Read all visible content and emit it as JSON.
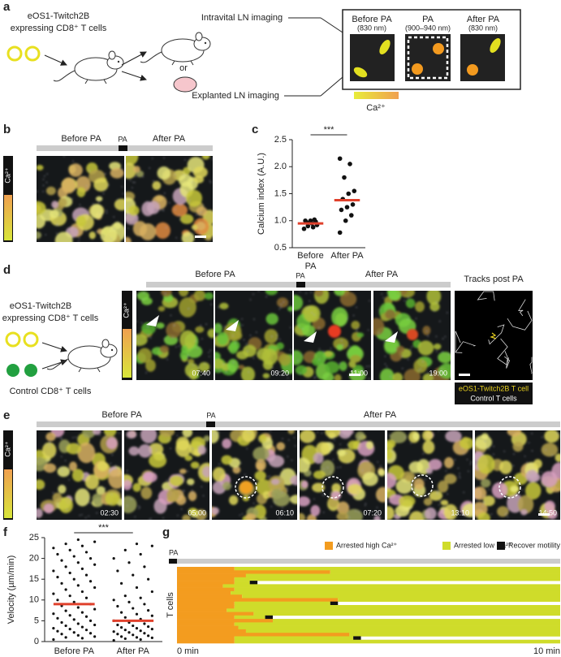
{
  "panel_letters": [
    "a",
    "b",
    "c",
    "d",
    "e",
    "f",
    "g"
  ],
  "panel_a": {
    "cells_line1": "eOS1-Twitch2B",
    "cells_line2": "expressing CD8⁺ T cells",
    "intravital": "Intravital LN imaging",
    "or": "or",
    "explanted": "Explanted LN imaging",
    "steps": [
      {
        "title": "Before PA",
        "sub": "(830 nm)"
      },
      {
        "title": "PA",
        "sub": "(900–940 nm)"
      },
      {
        "title": "After PA",
        "sub": "(830 nm)"
      }
    ],
    "colorbar": "Ca²⁺"
  },
  "panel_b": {
    "before": "Before PA",
    "pa": "PA",
    "after": "After PA",
    "colorbar": "Ca²⁺"
  },
  "panel_d": {
    "cells_line1": "eOS1-Twitch2B",
    "cells_line2": "expressing CD8⁺ T cells",
    "control": "Control CD8⁺ T cells",
    "before": "Before PA",
    "pa": "PA",
    "after": "After PA",
    "tracks": "Tracks post PA",
    "legend": [
      "eOS1-Twitch2B T cell",
      "Control T cells"
    ],
    "times": [
      "07:40",
      "09:20",
      "11:00",
      "19:00"
    ],
    "colorbar": "Ca²⁺"
  },
  "panel_e": {
    "before": "Before PA",
    "pa": "PA",
    "after": "After PA",
    "times": [
      "02:30",
      "05:00",
      "06:10",
      "07:20",
      "13:10",
      "14:50"
    ],
    "colorbar": "Ca²⁺"
  },
  "chart_data": [
    {
      "type": "strip",
      "ylabel": "Calcium index (A.U.)",
      "categories": [
        "Before PA",
        "After PA"
      ],
      "values": [
        [
          0.85,
          0.88,
          0.9,
          0.92,
          0.95,
          0.97,
          0.98,
          1.0,
          1.0,
          1.02
        ],
        [
          2.15,
          2.05,
          1.8,
          1.55,
          1.5,
          1.4,
          1.3,
          1.25,
          1.2,
          1.1,
          1.0,
          0.78
        ]
      ],
      "means": [
        0.95,
        1.38
      ],
      "color": "#111111",
      "mean_color": "#e0412c",
      "annotation": "***",
      "ylim": [
        0.5,
        2.5
      ],
      "yticks": [
        0.5,
        {
          "value": 1.0,
          "label": "1.0"
        },
        1.5,
        {
          "value": 2.0,
          "label": "2.0"
        },
        2.5
      ]
    },
    {
      "type": "strip",
      "ylabel": "Velocity (µm/min)",
      "categories": [
        "Before PA",
        "After PA"
      ],
      "values": [
        [
          0.5,
          0.8,
          1,
          1.2,
          1.5,
          1.8,
          2,
          2.2,
          2.5,
          2.8,
          3,
          3.2,
          3.5,
          3.8,
          4,
          4.3,
          4.6,
          5,
          5.3,
          5.6,
          6,
          6.3,
          6.7,
          7,
          7.4,
          7.8,
          8.2,
          8.6,
          9,
          9.5,
          10,
          10.5,
          11,
          11.5,
          12,
          12.5,
          13,
          13.5,
          14,
          14.5,
          15,
          15.5,
          16,
          16.5,
          17,
          17.5,
          18,
          18.5,
          19,
          19.5,
          20,
          20.5,
          21,
          21.5,
          22,
          22.5,
          23,
          23.5,
          24,
          24.5
        ],
        [
          0.3,
          0.5,
          0.7,
          0.9,
          1,
          1.2,
          1.4,
          1.6,
          1.8,
          2,
          2.2,
          2.4,
          2.6,
          2.8,
          3,
          3.2,
          3.4,
          3.6,
          3.8,
          4,
          4.3,
          4.6,
          5,
          5.4,
          5.8,
          6.2,
          6.6,
          7,
          7.5,
          8,
          8.5,
          9,
          9.5,
          10,
          10.5,
          11,
          12,
          13,
          14,
          15,
          16,
          17,
          18,
          19,
          20,
          21,
          22,
          23,
          23.5
        ]
      ],
      "means": [
        9,
        5
      ],
      "color": "#111111",
      "mean_color": "#e0412c",
      "annotation": "***",
      "ylim": [
        0,
        25
      ],
      "yticks": [
        0,
        5,
        10,
        15,
        20,
        25
      ]
    },
    {
      "type": "bar",
      "orientation": "horizontal",
      "stacked": true,
      "ylabel": "T cells",
      "marker_label": "PA",
      "categories": [
        null,
        null,
        null,
        null,
        null,
        null,
        null,
        null,
        null,
        null,
        null,
        null,
        null,
        null,
        null,
        null,
        null,
        null,
        null,
        null,
        null,
        null
      ],
      "series": [
        {
          "name": "Arrested high Ca²⁺",
          "color": "#f39c1f",
          "values": [
            1.5,
            4.0,
            1.8,
            1.5,
            1.5,
            1.2,
            1.5,
            1.4,
            1.7,
            4.2,
            1.5,
            1.5,
            1.3,
            2.0,
            1.5,
            2.5,
            1.5,
            1.6,
            1.8,
            4.5,
            1.5,
            1.5
          ]
        },
        {
          "name": "Arrested low Ca²⁺",
          "color": "#cfdc2a",
          "values": [
            8.5,
            6.0,
            8.2,
            8.5,
            0.4,
            8.8,
            8.5,
            8.6,
            8.3,
            5.8,
            2.5,
            8.5,
            8.7,
            8.0,
            0.8,
            7.5,
            8.5,
            8.4,
            8.2,
            5.5,
            3.1,
            8.5
          ]
        },
        {
          "name": "Recover motility",
          "color": "#111111",
          "values": [
            0,
            0,
            0,
            0,
            0.2,
            0,
            0,
            0,
            0,
            0,
            0.2,
            0,
            0,
            0,
            0.2,
            0,
            0,
            0,
            0,
            0,
            0.2,
            0
          ]
        }
      ],
      "legend": "top",
      "xlim": [
        0,
        10
      ],
      "xticks": [
        {
          "value": 0,
          "label": "0 min"
        },
        {
          "value": 10,
          "label": "10 min"
        }
      ]
    }
  ]
}
